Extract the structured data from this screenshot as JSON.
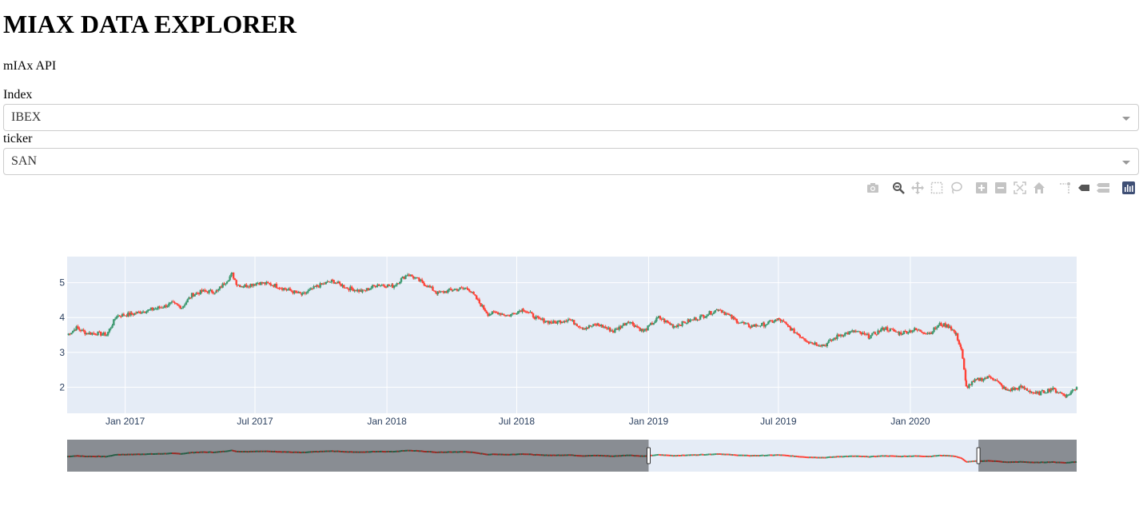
{
  "header": {
    "title": "MIAX DATA EXPLORER",
    "subtitle": "mIAx API"
  },
  "form": {
    "index_label": "Index",
    "index_value": "IBEX",
    "ticker_label": "ticker",
    "ticker_value": "SAN"
  },
  "modebar": {
    "buttons": [
      "camera-icon",
      "zoom-icon",
      "pan-icon",
      "box-select-icon",
      "lasso-select-icon",
      "zoom-in-icon",
      "zoom-out-icon",
      "autoscale-icon",
      "reset-axes-icon",
      "spike-lines-icon",
      "hover-closest-icon",
      "hover-compare-icon",
      "plotly-logo-icon"
    ]
  },
  "colors": {
    "increasing": "#3d9970",
    "decreasing": "#ff4136",
    "plot_bg": "#e5ecf6",
    "axis_text": "#2a3f5f"
  },
  "chart_data": {
    "type": "candlestick",
    "title": "",
    "xlabel": "",
    "ylabel": "",
    "x_range": [
      "2016-10-12",
      "2020-08-20"
    ],
    "ylim": [
      1.25,
      5.75
    ],
    "yticks": [
      2,
      3,
      4,
      5
    ],
    "xticks": [
      {
        "date": "2017-01-01",
        "label": "Jan 2017"
      },
      {
        "date": "2017-07-01",
        "label": "Jul 2017"
      },
      {
        "date": "2018-01-01",
        "label": "Jan 2018"
      },
      {
        "date": "2018-07-01",
        "label": "Jul 2018"
      },
      {
        "date": "2019-01-01",
        "label": "Jan 2019"
      },
      {
        "date": "2019-07-01",
        "label": "Jul 2019"
      },
      {
        "date": "2020-01-01",
        "label": "Jan 2020"
      }
    ],
    "grid": true,
    "close_series": {
      "dates": [
        "2016-10-12",
        "2016-10-25",
        "2016-11-08",
        "2016-11-22",
        "2016-12-06",
        "2016-12-20",
        "2017-01-10",
        "2017-01-31",
        "2017-02-21",
        "2017-03-07",
        "2017-03-21",
        "2017-04-04",
        "2017-04-18",
        "2017-05-09",
        "2017-05-30",
        "2017-06-06",
        "2017-06-15",
        "2017-07-05",
        "2017-07-25",
        "2017-08-15",
        "2017-09-05",
        "2017-09-26",
        "2017-10-17",
        "2017-11-07",
        "2017-11-28",
        "2017-12-19",
        "2018-01-09",
        "2018-01-30",
        "2018-02-20",
        "2018-03-13",
        "2018-04-03",
        "2018-04-24",
        "2018-05-22",
        "2018-06-05",
        "2018-06-19",
        "2018-07-10",
        "2018-07-31",
        "2018-08-21",
        "2018-09-11",
        "2018-10-02",
        "2018-10-23",
        "2018-11-13",
        "2018-12-04",
        "2018-12-25",
        "2019-01-15",
        "2019-02-05",
        "2019-02-26",
        "2019-03-19",
        "2019-04-09",
        "2019-04-30",
        "2019-05-21",
        "2019-06-11",
        "2019-07-02",
        "2019-07-23",
        "2019-08-13",
        "2019-09-03",
        "2019-09-24",
        "2019-10-15",
        "2019-11-05",
        "2019-11-26",
        "2019-12-17",
        "2020-01-07",
        "2020-01-28",
        "2020-02-11",
        "2020-02-25",
        "2020-03-05",
        "2020-03-12",
        "2020-03-19",
        "2020-04-02",
        "2020-04-23",
        "2020-05-14",
        "2020-06-04",
        "2020-06-25",
        "2020-07-16",
        "2020-08-06",
        "2020-08-20"
      ],
      "values": [
        3.5,
        3.7,
        3.55,
        3.55,
        3.5,
        4.05,
        4.1,
        4.2,
        4.3,
        4.4,
        4.3,
        4.65,
        4.75,
        4.75,
        5.25,
        4.95,
        4.9,
        5.0,
        4.95,
        4.8,
        4.65,
        4.9,
        5.05,
        4.85,
        4.75,
        4.95,
        4.9,
        5.25,
        5.0,
        4.7,
        4.8,
        4.85,
        4.1,
        4.15,
        4.05,
        4.25,
        3.95,
        3.85,
        3.95,
        3.7,
        3.8,
        3.6,
        3.9,
        3.6,
        4.0,
        3.75,
        3.9,
        4.05,
        4.25,
        3.95,
        3.75,
        3.8,
        3.95,
        3.6,
        3.3,
        3.2,
        3.5,
        3.6,
        3.45,
        3.7,
        3.55,
        3.65,
        3.55,
        3.8,
        3.75,
        3.5,
        3.1,
        2.0,
        2.2,
        2.3,
        1.9,
        2.0,
        1.8,
        1.95,
        1.75,
        2.0
      ]
    },
    "rangeslider": {
      "window_start": "2019-01-01",
      "window_end": "2020-04-05"
    }
  }
}
